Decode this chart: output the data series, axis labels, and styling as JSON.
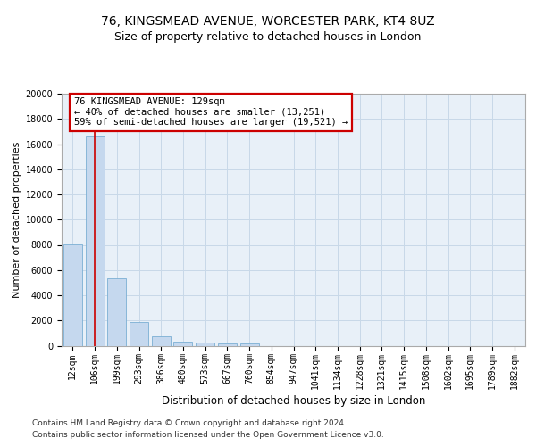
{
  "title_line1": "76, KINGSMEAD AVENUE, WORCESTER PARK, KT4 8UZ",
  "title_line2": "Size of property relative to detached houses in London",
  "xlabel": "Distribution of detached houses by size in London",
  "ylabel": "Number of detached properties",
  "categories": [
    "12sqm",
    "106sqm",
    "199sqm",
    "293sqm",
    "386sqm",
    "480sqm",
    "573sqm",
    "667sqm",
    "760sqm",
    "854sqm",
    "947sqm",
    "1041sqm",
    "1134sqm",
    "1228sqm",
    "1321sqm",
    "1415sqm",
    "1508sqm",
    "1602sqm",
    "1695sqm",
    "1789sqm",
    "1882sqm"
  ],
  "values": [
    8050,
    16600,
    5350,
    1850,
    750,
    350,
    230,
    200,
    180,
    0,
    0,
    0,
    0,
    0,
    0,
    0,
    0,
    0,
    0,
    0,
    0
  ],
  "bar_color": "#c5d8ee",
  "bar_edge_color": "#7aafd4",
  "vline_x": 1.0,
  "vline_color": "#cc0000",
  "annotation_line1": "76 KINGSMEAD AVENUE: 129sqm",
  "annotation_line2": "← 40% of detached houses are smaller (13,251)",
  "annotation_line3": "59% of semi-detached houses are larger (19,521) →",
  "annotation_box_facecolor": "#ffffff",
  "annotation_box_edgecolor": "#cc0000",
  "ylim_max": 20000,
  "yticks": [
    0,
    2000,
    4000,
    6000,
    8000,
    10000,
    12000,
    14000,
    16000,
    18000,
    20000
  ],
  "grid_color": "#c8d8e8",
  "background_color": "#e8f0f8",
  "footer_line1": "Contains HM Land Registry data © Crown copyright and database right 2024.",
  "footer_line2": "Contains public sector information licensed under the Open Government Licence v3.0.",
  "title_fontsize": 10,
  "subtitle_fontsize": 9,
  "ylabel_fontsize": 8,
  "xlabel_fontsize": 8.5,
  "tick_fontsize": 7,
  "annotation_fontsize": 7.5,
  "footer_fontsize": 6.5
}
